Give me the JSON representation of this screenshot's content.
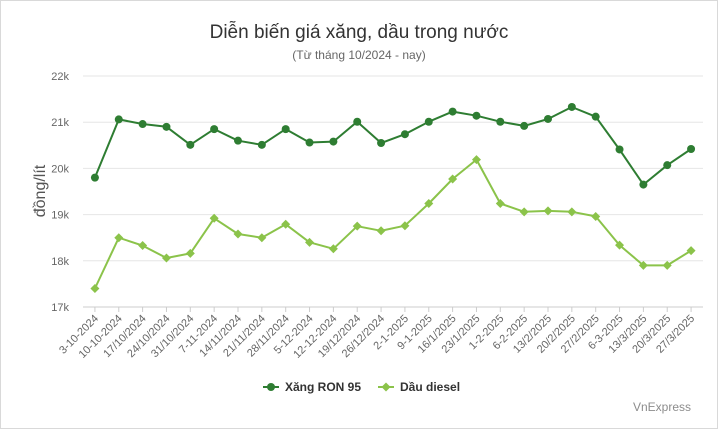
{
  "chart_data": {
    "type": "line",
    "title": "Diễn biến giá xăng, dầu trong nước",
    "subtitle": "(Từ tháng 10/2024 - nay)",
    "xlabel": "",
    "ylabel": "đồng/lít",
    "categories": [
      "3-10-2024",
      "10-10-2024",
      "17/10/2024",
      "24/10/2024",
      "31/10/2024",
      "7-11-2024",
      "14/11/2024",
      "21/11/2024",
      "28/11/2024",
      "5-12-2024",
      "12-12-2024",
      "19/12/2024",
      "26/12/2024",
      "2-1-2025",
      "9-1-2025",
      "16/1/2025",
      "23/1/2025",
      "1-2-2025",
      "6-2-2025",
      "13/2/2025",
      "20/2/2025",
      "27/2/2025",
      "6-3-2025",
      "13/3/2025",
      "20/3/2025",
      "27/3/2025"
    ],
    "ylim": [
      17000,
      22000
    ],
    "yticks": [
      17000,
      18000,
      19000,
      20000,
      21000,
      22000
    ],
    "ytick_labels": [
      "17k",
      "18k",
      "19k",
      "20k",
      "21k",
      "22k"
    ],
    "grid": true,
    "legend_position": "bottom",
    "series": [
      {
        "name": "Xăng RON 95",
        "color": "#2e7d32",
        "marker": "circle",
        "values": [
          19800,
          21060,
          20960,
          20900,
          20510,
          20850,
          20600,
          20510,
          20850,
          20560,
          20580,
          21010,
          20550,
          20740,
          21010,
          21230,
          21140,
          21010,
          20920,
          21070,
          21330,
          21120,
          20410,
          19650,
          20070,
          20420
        ]
      },
      {
        "name": "Dầu diesel",
        "color": "#8bc34a",
        "marker": "diamond",
        "values": [
          17400,
          18500,
          18330,
          18060,
          18160,
          18920,
          18580,
          18500,
          18790,
          18400,
          18260,
          18750,
          18650,
          18760,
          19240,
          19770,
          20190,
          19240,
          19060,
          19080,
          19060,
          18960,
          18340,
          17900,
          17900,
          18220
        ]
      }
    ]
  },
  "source": "VnExpress"
}
